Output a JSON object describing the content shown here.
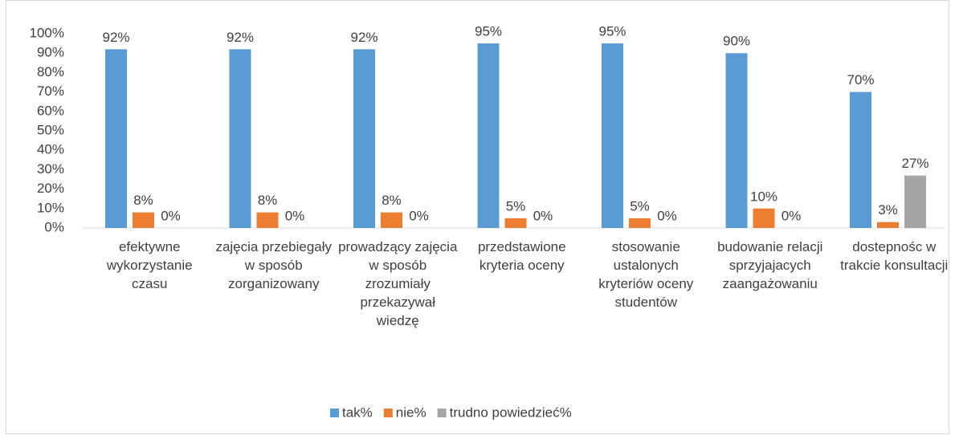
{
  "chart_data": {
    "type": "bar",
    "categories": [
      "efektywne wykorzystanie czasu",
      "zajęcia przebiegały w sposób zorganizowany",
      "prowadzący zajęcia w sposób zrozumiały przekazywał wiedzę",
      "przedstawione kryteria oceny",
      "stosowanie ustalonych kryteriów oceny studentów",
      "budowanie relacji sprzyjajacych zaangażowaniu",
      "dostepnośc w trakcie konsultacji"
    ],
    "series": [
      {
        "name": "tak%",
        "color": "#5b9bd5",
        "values": [
          92,
          92,
          92,
          95,
          95,
          90,
          70
        ],
        "value_labels": [
          "92%",
          "92%",
          "92%",
          "95%",
          "95%",
          "90%",
          "70%"
        ]
      },
      {
        "name": "nie%",
        "color": "#ed7d31",
        "values": [
          8,
          8,
          8,
          5,
          5,
          10,
          3
        ],
        "value_labels": [
          "8%",
          "8%",
          "8%",
          "5%",
          "5%",
          "10%",
          "3%"
        ]
      },
      {
        "name": "trudno powiedzieć%",
        "color": "#a5a5a5",
        "values": [
          0,
          0,
          0,
          0,
          0,
          0,
          27
        ],
        "value_labels": [
          "0%",
          "0%",
          "0%",
          "0%",
          "0%",
          "0%",
          "27%"
        ]
      }
    ],
    "ylim": [
      0,
      100
    ],
    "yticks": [
      {
        "value": 0,
        "label": "0%"
      },
      {
        "value": 10,
        "label": "10%"
      },
      {
        "value": 20,
        "label": "20%"
      },
      {
        "value": 30,
        "label": "30%"
      },
      {
        "value": 40,
        "label": "40%"
      },
      {
        "value": 50,
        "label": "50%"
      },
      {
        "value": 60,
        "label": "60%"
      },
      {
        "value": 70,
        "label": "70%"
      },
      {
        "value": 80,
        "label": "80%"
      },
      {
        "value": 90,
        "label": "90%"
      },
      {
        "value": 100,
        "label": "100%"
      }
    ],
    "grid": false,
    "legend": "bottom"
  }
}
